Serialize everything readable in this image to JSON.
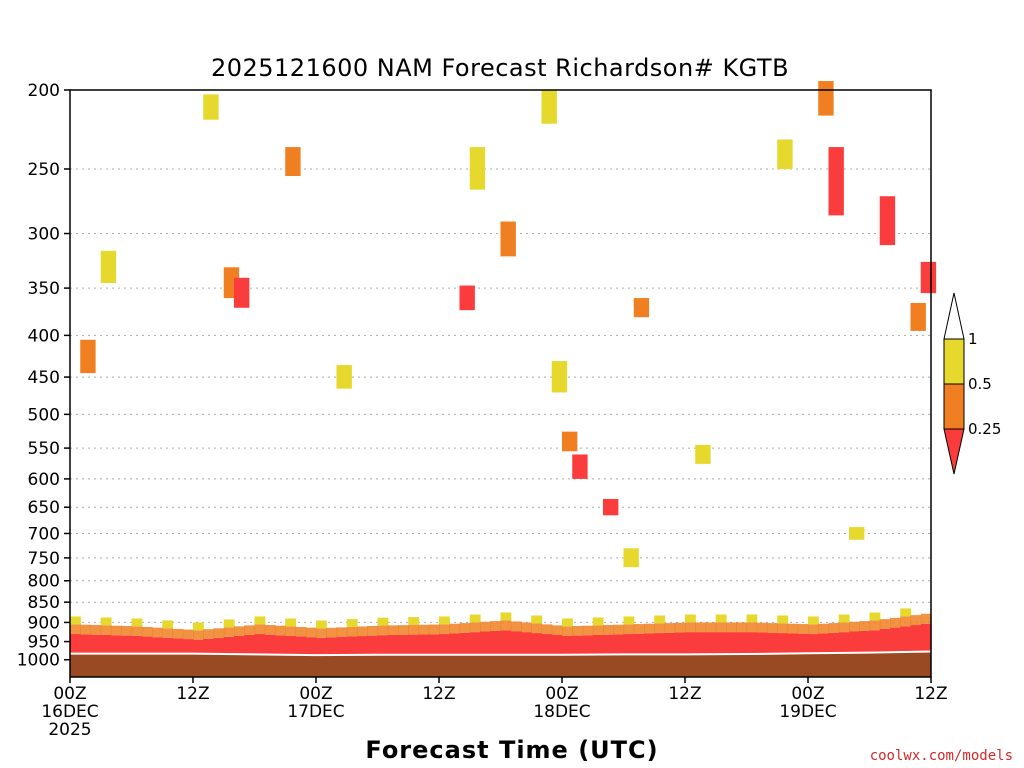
{
  "chart_data": {
    "type": "heatmap",
    "title": "2025121600 NAM Forecast Richardson# KGTB",
    "xlabel": "Forecast Time (UTC)",
    "ylabel": "",
    "credit": "coolwx.com/models",
    "xlim_hours": [
      0,
      84
    ],
    "ylim_hPa": [
      1000,
      200
    ],
    "y_ticks": [
      200,
      250,
      300,
      350,
      400,
      450,
      500,
      550,
      600,
      650,
      700,
      750,
      800,
      850,
      900,
      950,
      1000
    ],
    "y_tick_labels": [
      "200",
      "250",
      "300",
      "350",
      "400",
      "450",
      "500",
      "550",
      "600",
      "650",
      "700",
      "750",
      "800",
      "850",
      "900",
      "950",
      "1000"
    ],
    "x_ticks": [
      {
        "hour": 0,
        "lines": [
          "00Z",
          "16DEC",
          "2025"
        ]
      },
      {
        "hour": 12,
        "lines": [
          "12Z"
        ]
      },
      {
        "hour": 24,
        "lines": [
          "00Z",
          "17DEC"
        ]
      },
      {
        "hour": 36,
        "lines": [
          "12Z"
        ]
      },
      {
        "hour": 48,
        "lines": [
          "00Z",
          "18DEC"
        ]
      },
      {
        "hour": 60,
        "lines": [
          "12Z"
        ]
      },
      {
        "hour": 72,
        "lines": [
          "00Z",
          "19DEC"
        ]
      },
      {
        "hour": 84,
        "lines": [
          "12Z"
        ]
      }
    ],
    "grid": true,
    "legend": {
      "position": "right",
      "bins": [
        {
          "label": "1",
          "range": [
            0.5,
            1
          ],
          "color": "#e6d82c"
        },
        {
          "label": "0.5",
          "range": [
            0.25,
            0.5
          ],
          "color": "#f07f22"
        },
        {
          "label": "0.25",
          "range": [
            0,
            0.25
          ],
          "color": "#fa3c3c"
        }
      ]
    },
    "colors": {
      "gt1": "#ffffff",
      "mid_high": "#e6d82c",
      "mid_low": "#f07f22",
      "low": "#fa3c3c",
      "ground": "#9a4a22"
    },
    "surface_pressure_hPa": [
      [
        0,
        983
      ],
      [
        6,
        983
      ],
      [
        12,
        983
      ],
      [
        18,
        985
      ],
      [
        24,
        987
      ],
      [
        30,
        986
      ],
      [
        36,
        986
      ],
      [
        42,
        986
      ],
      [
        48,
        986
      ],
      [
        54,
        985
      ],
      [
        60,
        985
      ],
      [
        66,
        984
      ],
      [
        72,
        982
      ],
      [
        78,
        980
      ],
      [
        84,
        977
      ]
    ],
    "series": [
      {
        "name": "low-level layer Ri < 0.25",
        "bin": "low",
        "points": [
          {
            "hour": 0,
            "bottom": 983,
            "top": 930
          },
          {
            "hour": 6,
            "bottom": 983,
            "top": 935
          },
          {
            "hour": 12,
            "bottom": 983,
            "top": 945
          },
          {
            "hour": 18,
            "bottom": 985,
            "top": 930
          },
          {
            "hour": 24,
            "bottom": 987,
            "top": 940
          },
          {
            "hour": 30,
            "bottom": 986,
            "top": 933
          },
          {
            "hour": 36,
            "bottom": 986,
            "top": 930
          },
          {
            "hour": 42,
            "bottom": 986,
            "top": 920
          },
          {
            "hour": 48,
            "bottom": 986,
            "top": 935
          },
          {
            "hour": 54,
            "bottom": 985,
            "top": 930
          },
          {
            "hour": 60,
            "bottom": 985,
            "top": 925
          },
          {
            "hour": 66,
            "bottom": 984,
            "top": 925
          },
          {
            "hour": 72,
            "bottom": 982,
            "top": 930
          },
          {
            "hour": 78,
            "bottom": 980,
            "top": 920
          },
          {
            "hour": 84,
            "bottom": 977,
            "top": 900
          }
        ]
      },
      {
        "name": "scattered Ri 0.25-0.5",
        "bin": "mid_low",
        "points": [
          {
            "hour": 1,
            "p": 425,
            "dp": 40
          },
          {
            "hour": 15,
            "p": 345,
            "dp": 30
          },
          {
            "hour": 21,
            "p": 245,
            "dp": 20
          },
          {
            "hour": 42,
            "p": 305,
            "dp": 30
          },
          {
            "hour": 48,
            "p": 540,
            "dp": 30
          },
          {
            "hour": 55,
            "p": 370,
            "dp": 20
          },
          {
            "hour": 73,
            "p": 205,
            "dp": 20
          },
          {
            "hour": 82,
            "p": 380,
            "dp": 30
          }
        ]
      },
      {
        "name": "scattered Ri < 0.25",
        "bin": "low",
        "points": [
          {
            "hour": 16,
            "p": 355,
            "dp": 30
          },
          {
            "hour": 38,
            "p": 360,
            "dp": 25
          },
          {
            "hour": 49,
            "p": 580,
            "dp": 40
          },
          {
            "hour": 52,
            "p": 650,
            "dp": 30
          },
          {
            "hour": 74,
            "p": 260,
            "dp": 50
          },
          {
            "hour": 79,
            "p": 290,
            "dp": 40
          },
          {
            "hour": 83,
            "p": 340,
            "dp": 30
          }
        ]
      },
      {
        "name": "scattered Ri 0.5-1",
        "bin": "mid_high",
        "points": [
          {
            "hour": 3,
            "p": 330,
            "dp": 30
          },
          {
            "hour": 13,
            "p": 210,
            "dp": 15
          },
          {
            "hour": 26,
            "p": 450,
            "dp": 30
          },
          {
            "hour": 39,
            "p": 250,
            "dp": 30
          },
          {
            "hour": 46,
            "p": 210,
            "dp": 20
          },
          {
            "hour": 47,
            "p": 450,
            "dp": 40
          },
          {
            "hour": 54,
            "p": 750,
            "dp": 40
          },
          {
            "hour": 61,
            "p": 560,
            "dp": 30
          },
          {
            "hour": 69,
            "p": 240,
            "dp": 20
          },
          {
            "hour": 76,
            "p": 700,
            "dp": 25
          }
        ]
      }
    ]
  }
}
